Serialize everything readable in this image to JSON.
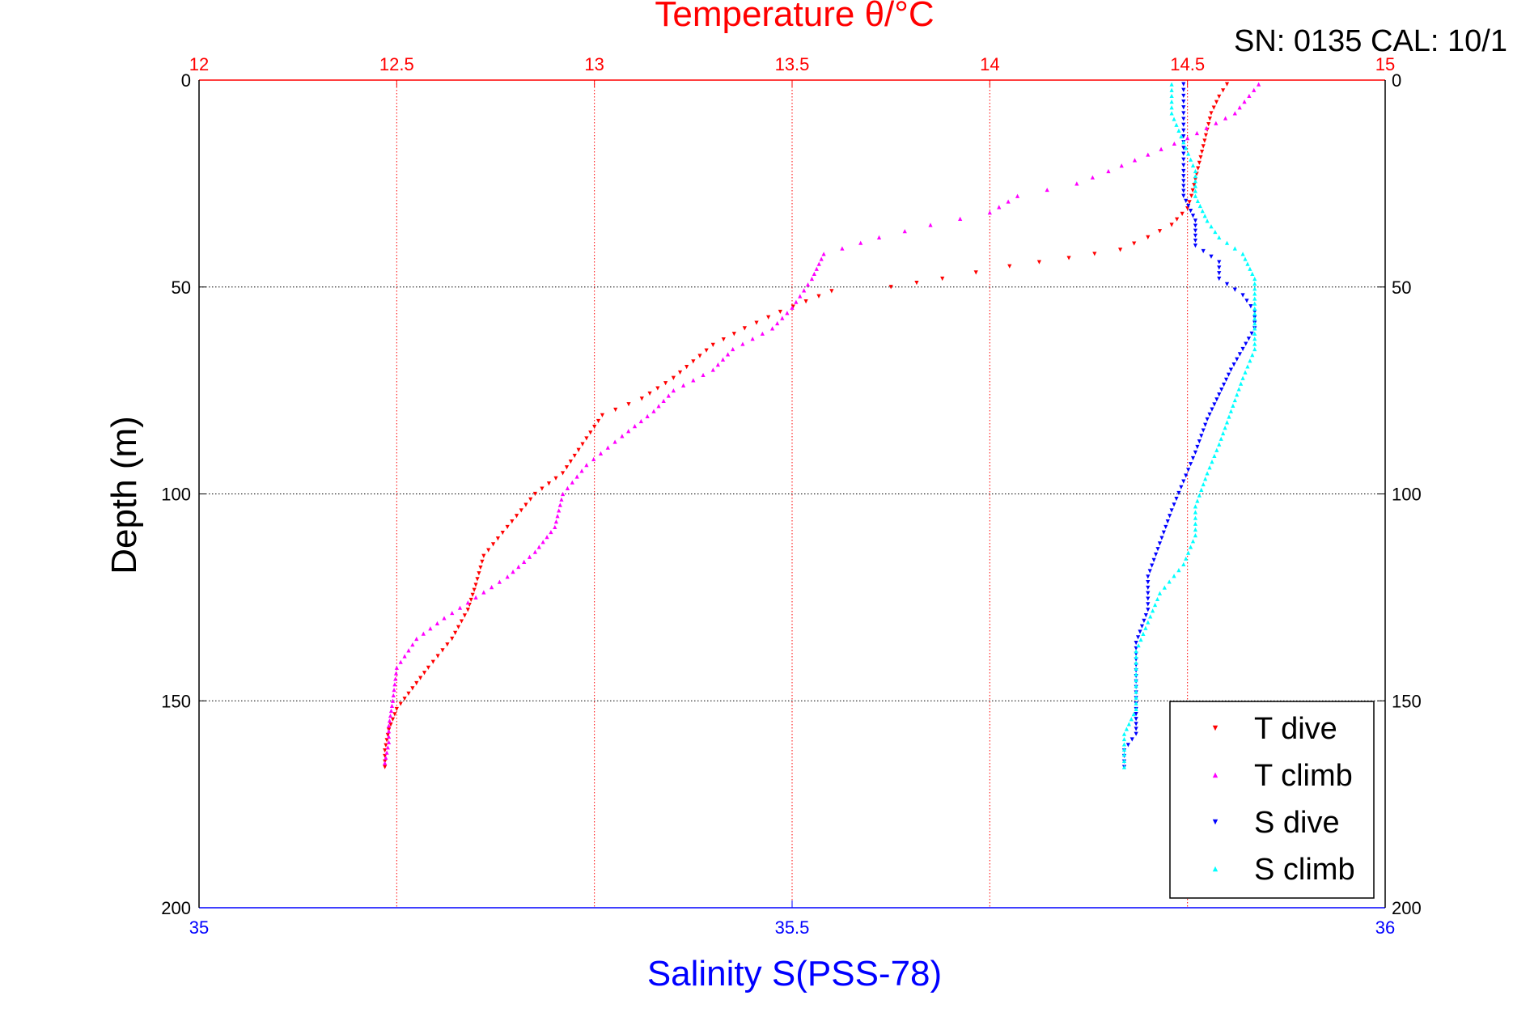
{
  "chart_data": {
    "type": "scatter",
    "title": "Temperature θ/°C",
    "corner_label": "SN: 0135  CAL: 10/1",
    "xlabel_top": "Temperature θ/°C",
    "xlabel_bottom": "Salinity S(PSS-78)",
    "ylabel": "Depth (m)",
    "temperature_axis": {
      "range": [
        12,
        15
      ],
      "ticks": [
        "12",
        "12.5",
        "13",
        "13.5",
        "14",
        "14.5",
        "15"
      ],
      "color": "#ff0000"
    },
    "salinity_axis": {
      "range": [
        35,
        36
      ],
      "ticks": [
        "35",
        "35.5",
        "36"
      ],
      "color": "#0000ff"
    },
    "depth_axis": {
      "range": [
        0,
        200
      ],
      "reversed": true,
      "ticks": [
        "0",
        "50",
        "100",
        "150",
        "200"
      ]
    },
    "grid": true,
    "legend_position": "bottom-right",
    "series": [
      {
        "name": "T dive",
        "axis": "temperature",
        "color": "#ff0000",
        "marker": "triangle-down",
        "points": [
          [
            14.6,
            1
          ],
          [
            14.58,
            4
          ],
          [
            14.56,
            8
          ],
          [
            14.55,
            12
          ],
          [
            14.54,
            16
          ],
          [
            14.53,
            20
          ],
          [
            14.52,
            24
          ],
          [
            14.51,
            28
          ],
          [
            14.5,
            31
          ],
          [
            14.46,
            35
          ],
          [
            14.4,
            38
          ],
          [
            14.33,
            41
          ],
          [
            14.2,
            43
          ],
          [
            14.05,
            45
          ],
          [
            13.88,
            48
          ],
          [
            13.75,
            50
          ],
          [
            13.6,
            51
          ],
          [
            13.47,
            56
          ],
          [
            13.38,
            60
          ],
          [
            13.3,
            64
          ],
          [
            13.25,
            68
          ],
          [
            13.2,
            72
          ],
          [
            13.12,
            77
          ],
          [
            13.02,
            81
          ],
          [
            12.97,
            88
          ],
          [
            12.92,
            95
          ],
          [
            12.85,
            100
          ],
          [
            12.78,
            108
          ],
          [
            12.72,
            115
          ],
          [
            12.7,
            122
          ],
          [
            12.68,
            128
          ],
          [
            12.64,
            135
          ],
          [
            12.58,
            142
          ],
          [
            12.54,
            147
          ],
          [
            12.5,
            152
          ],
          [
            12.48,
            157
          ],
          [
            12.47,
            162
          ],
          [
            12.47,
            166
          ]
        ]
      },
      {
        "name": "T climb",
        "axis": "temperature",
        "color": "#ff00ff",
        "marker": "triangle-up",
        "points": [
          [
            14.68,
            1
          ],
          [
            14.62,
            8
          ],
          [
            14.5,
            14
          ],
          [
            14.4,
            18
          ],
          [
            14.3,
            22
          ],
          [
            14.22,
            25
          ],
          [
            14.07,
            28
          ],
          [
            14.0,
            32
          ],
          [
            13.85,
            35
          ],
          [
            13.72,
            38
          ],
          [
            13.58,
            42
          ],
          [
            13.55,
            48
          ],
          [
            13.5,
            55
          ],
          [
            13.45,
            60
          ],
          [
            13.35,
            65
          ],
          [
            13.3,
            70
          ],
          [
            13.2,
            75
          ],
          [
            13.15,
            80
          ],
          [
            13.07,
            86
          ],
          [
            12.98,
            93
          ],
          [
            12.92,
            100
          ],
          [
            12.9,
            108
          ],
          [
            12.85,
            114
          ],
          [
            12.78,
            120
          ],
          [
            12.7,
            125
          ],
          [
            12.62,
            130
          ],
          [
            12.55,
            135
          ],
          [
            12.5,
            142
          ],
          [
            12.49,
            150
          ],
          [
            12.48,
            156
          ],
          [
            12.48,
            160
          ],
          [
            12.47,
            165
          ]
        ]
      },
      {
        "name": "S dive",
        "axis": "salinity",
        "color": "#0000ff",
        "marker": "triangle-down",
        "points": [
          [
            35.83,
            1
          ],
          [
            35.83,
            8
          ],
          [
            35.83,
            15
          ],
          [
            35.83,
            22
          ],
          [
            35.83,
            28
          ],
          [
            35.84,
            34
          ],
          [
            35.84,
            40
          ],
          [
            35.86,
            44
          ],
          [
            35.86,
            48
          ],
          [
            35.88,
            52
          ],
          [
            35.89,
            56
          ],
          [
            35.89,
            60
          ],
          [
            35.88,
            65
          ],
          [
            35.87,
            70
          ],
          [
            35.86,
            76
          ],
          [
            35.85,
            82
          ],
          [
            35.84,
            90
          ],
          [
            35.83,
            97
          ],
          [
            35.82,
            104
          ],
          [
            35.81,
            112
          ],
          [
            35.8,
            120
          ],
          [
            35.8,
            128
          ],
          [
            35.79,
            136
          ],
          [
            35.79,
            144
          ],
          [
            35.79,
            152
          ],
          [
            35.79,
            158
          ],
          [
            35.78,
            162
          ],
          [
            35.78,
            166
          ]
        ]
      },
      {
        "name": "S climb",
        "axis": "salinity",
        "color": "#00ffff",
        "marker": "triangle-up",
        "points": [
          [
            35.82,
            1
          ],
          [
            35.82,
            8
          ],
          [
            35.83,
            15
          ],
          [
            35.84,
            22
          ],
          [
            35.84,
            28
          ],
          [
            35.85,
            34
          ],
          [
            35.86,
            38
          ],
          [
            35.88,
            42
          ],
          [
            35.89,
            48
          ],
          [
            35.89,
            54
          ],
          [
            35.89,
            60
          ],
          [
            35.89,
            65
          ],
          [
            35.88,
            72
          ],
          [
            35.87,
            80
          ],
          [
            35.86,
            88
          ],
          [
            35.85,
            95
          ],
          [
            35.84,
            103
          ],
          [
            35.84,
            110
          ],
          [
            35.83,
            117
          ],
          [
            35.81,
            124
          ],
          [
            35.8,
            131
          ],
          [
            35.79,
            138
          ],
          [
            35.79,
            145
          ],
          [
            35.79,
            152
          ],
          [
            35.78,
            158
          ],
          [
            35.78,
            163
          ],
          [
            35.78,
            166
          ]
        ]
      }
    ]
  }
}
